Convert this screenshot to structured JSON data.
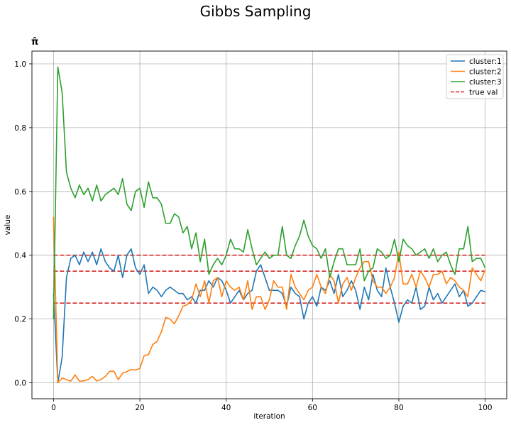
{
  "figure": {
    "suptitle": "Gibbs Sampling",
    "axes_title": "π̂"
  },
  "chart_data": {
    "type": "line",
    "title": "π̂",
    "xlabel": "iteration",
    "ylabel": "value",
    "xlim": [
      -5,
      105
    ],
    "ylim": [
      -0.05,
      1.04
    ],
    "xticks": [
      0,
      20,
      40,
      60,
      80,
      100
    ],
    "yticks": [
      0.0,
      0.2,
      0.4,
      0.6,
      0.8,
      1.0
    ],
    "xtick_labels": [
      "0",
      "20",
      "40",
      "60",
      "80",
      "100"
    ],
    "ytick_labels": [
      "0.0",
      "0.2",
      "0.4",
      "0.6",
      "0.8",
      "1.0"
    ],
    "grid": true,
    "legend_position": "top-right",
    "series": [
      {
        "name": "cluster:1",
        "color": "#1f77b4",
        "values": [
          0.28,
          0.0,
          0.08,
          0.33,
          0.39,
          0.4,
          0.37,
          0.41,
          0.38,
          0.41,
          0.37,
          0.42,
          0.38,
          0.36,
          0.35,
          0.4,
          0.33,
          0.4,
          0.42,
          0.36,
          0.34,
          0.37,
          0.28,
          0.3,
          0.29,
          0.27,
          0.29,
          0.3,
          0.29,
          0.28,
          0.28,
          0.26,
          0.27,
          0.25,
          0.29,
          0.29,
          0.32,
          0.3,
          0.33,
          0.32,
          0.29,
          0.25,
          0.27,
          0.29,
          0.26,
          0.28,
          0.29,
          0.35,
          0.37,
          0.33,
          0.29,
          0.29,
          0.29,
          0.28,
          0.24,
          0.3,
          0.28,
          0.27,
          0.2,
          0.25,
          0.27,
          0.24,
          0.3,
          0.29,
          0.32,
          0.28,
          0.34,
          0.27,
          0.29,
          0.32,
          0.29,
          0.23,
          0.3,
          0.26,
          0.34,
          0.29,
          0.27,
          0.36,
          0.3,
          0.25,
          0.19,
          0.24,
          0.26,
          0.25,
          0.3,
          0.23,
          0.24,
          0.3,
          0.26,
          0.28,
          0.25,
          0.27,
          0.29,
          0.31,
          0.27,
          0.29,
          0.24,
          0.25,
          0.27,
          0.29,
          0.285
        ]
      },
      {
        "name": "cluster:2",
        "color": "#ff7f0e",
        "values": [
          0.52,
          0.0,
          0.015,
          0.01,
          0.005,
          0.025,
          0.005,
          0.006,
          0.01,
          0.02,
          0.006,
          0.01,
          0.02,
          0.036,
          0.036,
          0.01,
          0.03,
          0.035,
          0.042,
          0.04,
          0.045,
          0.085,
          0.088,
          0.12,
          0.13,
          0.16,
          0.205,
          0.2,
          0.185,
          0.21,
          0.24,
          0.245,
          0.26,
          0.31,
          0.27,
          0.32,
          0.25,
          0.32,
          0.33,
          0.27,
          0.32,
          0.3,
          0.29,
          0.3,
          0.26,
          0.32,
          0.23,
          0.27,
          0.27,
          0.23,
          0.26,
          0.32,
          0.3,
          0.3,
          0.23,
          0.34,
          0.3,
          0.28,
          0.26,
          0.29,
          0.3,
          0.34,
          0.3,
          0.28,
          0.34,
          0.32,
          0.25,
          0.31,
          0.33,
          0.29,
          0.33,
          0.36,
          0.38,
          0.38,
          0.32,
          0.3,
          0.3,
          0.28,
          0.3,
          0.33,
          0.41,
          0.31,
          0.31,
          0.34,
          0.3,
          0.35,
          0.33,
          0.3,
          0.34,
          0.34,
          0.35,
          0.31,
          0.33,
          0.32,
          0.3,
          0.29,
          0.27,
          0.36,
          0.34,
          0.32,
          0.355
        ]
      },
      {
        "name": "cluster:3",
        "color": "#2ca02c",
        "values": [
          0.2,
          0.99,
          0.91,
          0.66,
          0.61,
          0.58,
          0.62,
          0.59,
          0.61,
          0.57,
          0.62,
          0.57,
          0.59,
          0.6,
          0.61,
          0.59,
          0.64,
          0.56,
          0.54,
          0.6,
          0.61,
          0.55,
          0.63,
          0.58,
          0.58,
          0.56,
          0.5,
          0.5,
          0.53,
          0.52,
          0.47,
          0.49,
          0.42,
          0.47,
          0.38,
          0.45,
          0.34,
          0.37,
          0.39,
          0.37,
          0.4,
          0.45,
          0.42,
          0.42,
          0.41,
          0.48,
          0.42,
          0.37,
          0.39,
          0.41,
          0.39,
          0.4,
          0.4,
          0.49,
          0.4,
          0.39,
          0.43,
          0.46,
          0.51,
          0.46,
          0.43,
          0.42,
          0.39,
          0.42,
          0.33,
          0.38,
          0.42,
          0.42,
          0.37,
          0.37,
          0.37,
          0.42,
          0.32,
          0.35,
          0.36,
          0.42,
          0.41,
          0.39,
          0.4,
          0.45,
          0.38,
          0.45,
          0.43,
          0.42,
          0.4,
          0.41,
          0.42,
          0.39,
          0.42,
          0.38,
          0.4,
          0.41,
          0.37,
          0.34,
          0.42,
          0.42,
          0.49,
          0.38,
          0.39,
          0.39,
          0.36
        ]
      }
    ],
    "true_values": {
      "name": "true val",
      "color": "#d62728",
      "style": "dashed",
      "x_range": [
        0,
        100
      ],
      "levels": [
        0.25,
        0.35,
        0.4
      ]
    }
  }
}
